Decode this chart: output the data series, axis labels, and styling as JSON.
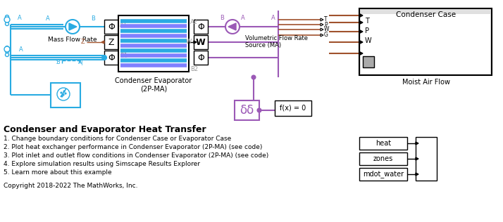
{
  "title": "Condenser and Evaporator Heat Transfer",
  "bullet_points": [
    "1. Change boundary conditions for Condenser Case or Evaporator Case",
    "2. Plot heat exchanger performance in Condenser Evaporator (2P-MA) (see code)",
    "3. Plot inlet and outlet flow conditions in Condenser Evaporator (2P-MA) (see code)",
    "4. Explore simulation results using Simscape Results Explorer",
    "5. Learn more about this example"
  ],
  "copyright": "Copyright 2018-2022 The MathWorks, Inc.",
  "bg_color": "#ffffff",
  "cyan": "#29ABE2",
  "purple": "#9B59B6",
  "brown": "#A0522D",
  "gray_box": "#E0E0E0",
  "condenser_label": "Condenser Evaporator\n(2P-MA)",
  "condenser_case_label": "Condenser Case",
  "moist_air_label": "Moist Air Flow",
  "mass_flow_label": "Mass Flow Rate",
  "volumetric_label": "Volumetric Flow Rate\nSource (MA)"
}
